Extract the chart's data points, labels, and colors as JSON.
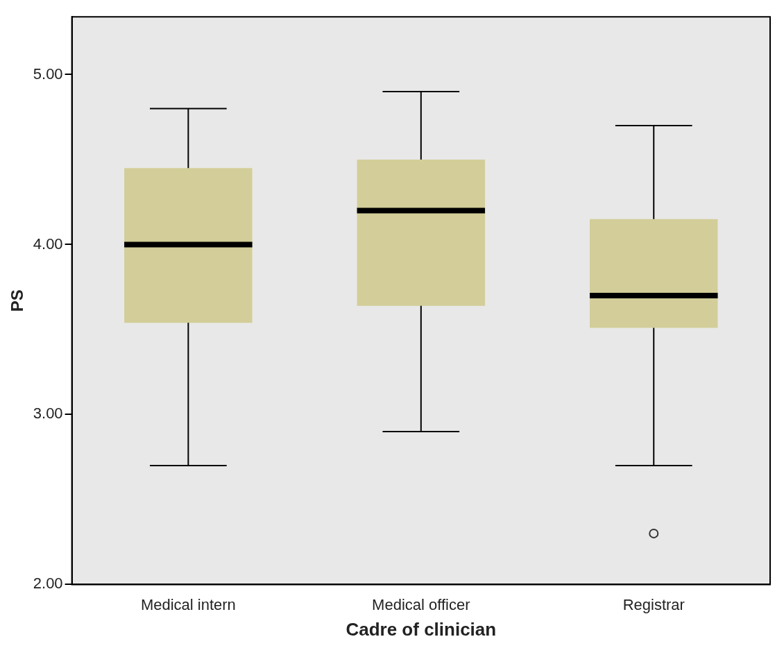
{
  "chart_data": {
    "type": "box",
    "xlabel": "Cadre of clinician",
    "ylabel": "PS",
    "categories": [
      "Medical intern",
      "Medical officer",
      "Registrar"
    ],
    "color": "#d3ce99",
    "boxes": [
      {
        "low": 2.7,
        "q1": 3.54,
        "median": 4.0,
        "q3": 4.45,
        "high": 4.8
      },
      {
        "low": 2.9,
        "q1": 3.64,
        "median": 4.2,
        "q3": 4.5,
        "high": 4.9
      },
      {
        "low": 2.7,
        "q1": 3.51,
        "median": 3.7,
        "q3": 4.15,
        "high": 4.7,
        "outliers": [
          2.3
        ]
      }
    ],
    "ylim": [
      2,
      5.34
    ],
    "yticks": [
      {
        "value": 2,
        "label": "2.00"
      },
      {
        "value": 3,
        "label": "3.00"
      },
      {
        "value": 4,
        "label": "4.00"
      },
      {
        "value": 5,
        "label": "5.00"
      }
    ],
    "grid": false,
    "legend": false
  }
}
